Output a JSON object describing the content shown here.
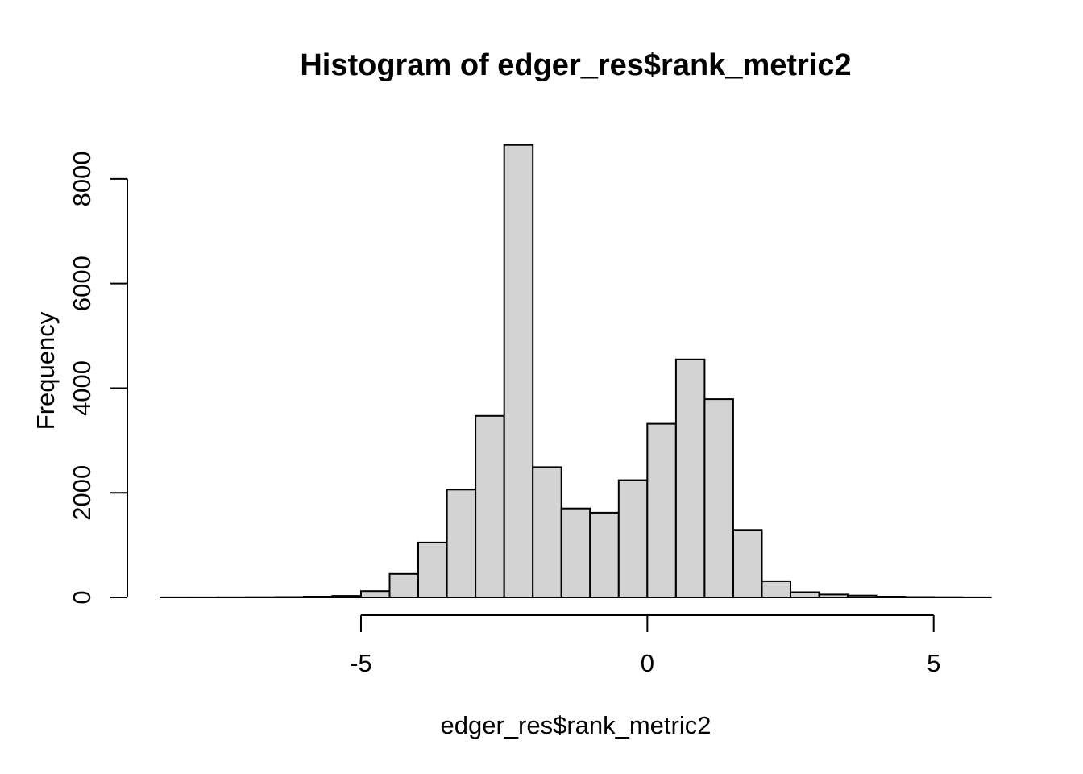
{
  "chart_data": {
    "type": "bar",
    "subtype": "histogram",
    "title": "Histogram of edger_res$rank_metric2",
    "xlabel": "edger_res$rank_metric2",
    "ylabel": "Frequency",
    "bin_start": -8.5,
    "bin_width": 0.5,
    "counts": [
      2,
      2,
      3,
      5,
      8,
      15,
      30,
      120,
      450,
      1050,
      2060,
      3470,
      8650,
      2490,
      1700,
      1620,
      2240,
      3320,
      4550,
      3790,
      1290,
      310,
      100,
      55,
      35,
      15,
      8,
      4,
      2
    ],
    "x_ticks": [
      -5,
      0,
      5
    ],
    "x_tick_labels": [
      "-5",
      "0",
      "5"
    ],
    "y_ticks": [
      0,
      2000,
      4000,
      6000,
      8000
    ],
    "y_tick_labels": [
      "0",
      "2000",
      "4000",
      "6000",
      "8000"
    ],
    "xlim": [
      -9.08,
      6.58
    ],
    "ylim": [
      0,
      9000
    ],
    "grid": false,
    "legend": null,
    "bar_fill": "#D3D3D3",
    "bar_stroke": "#000000",
    "axis_color": "#000000",
    "background": "#FFFFFF"
  }
}
